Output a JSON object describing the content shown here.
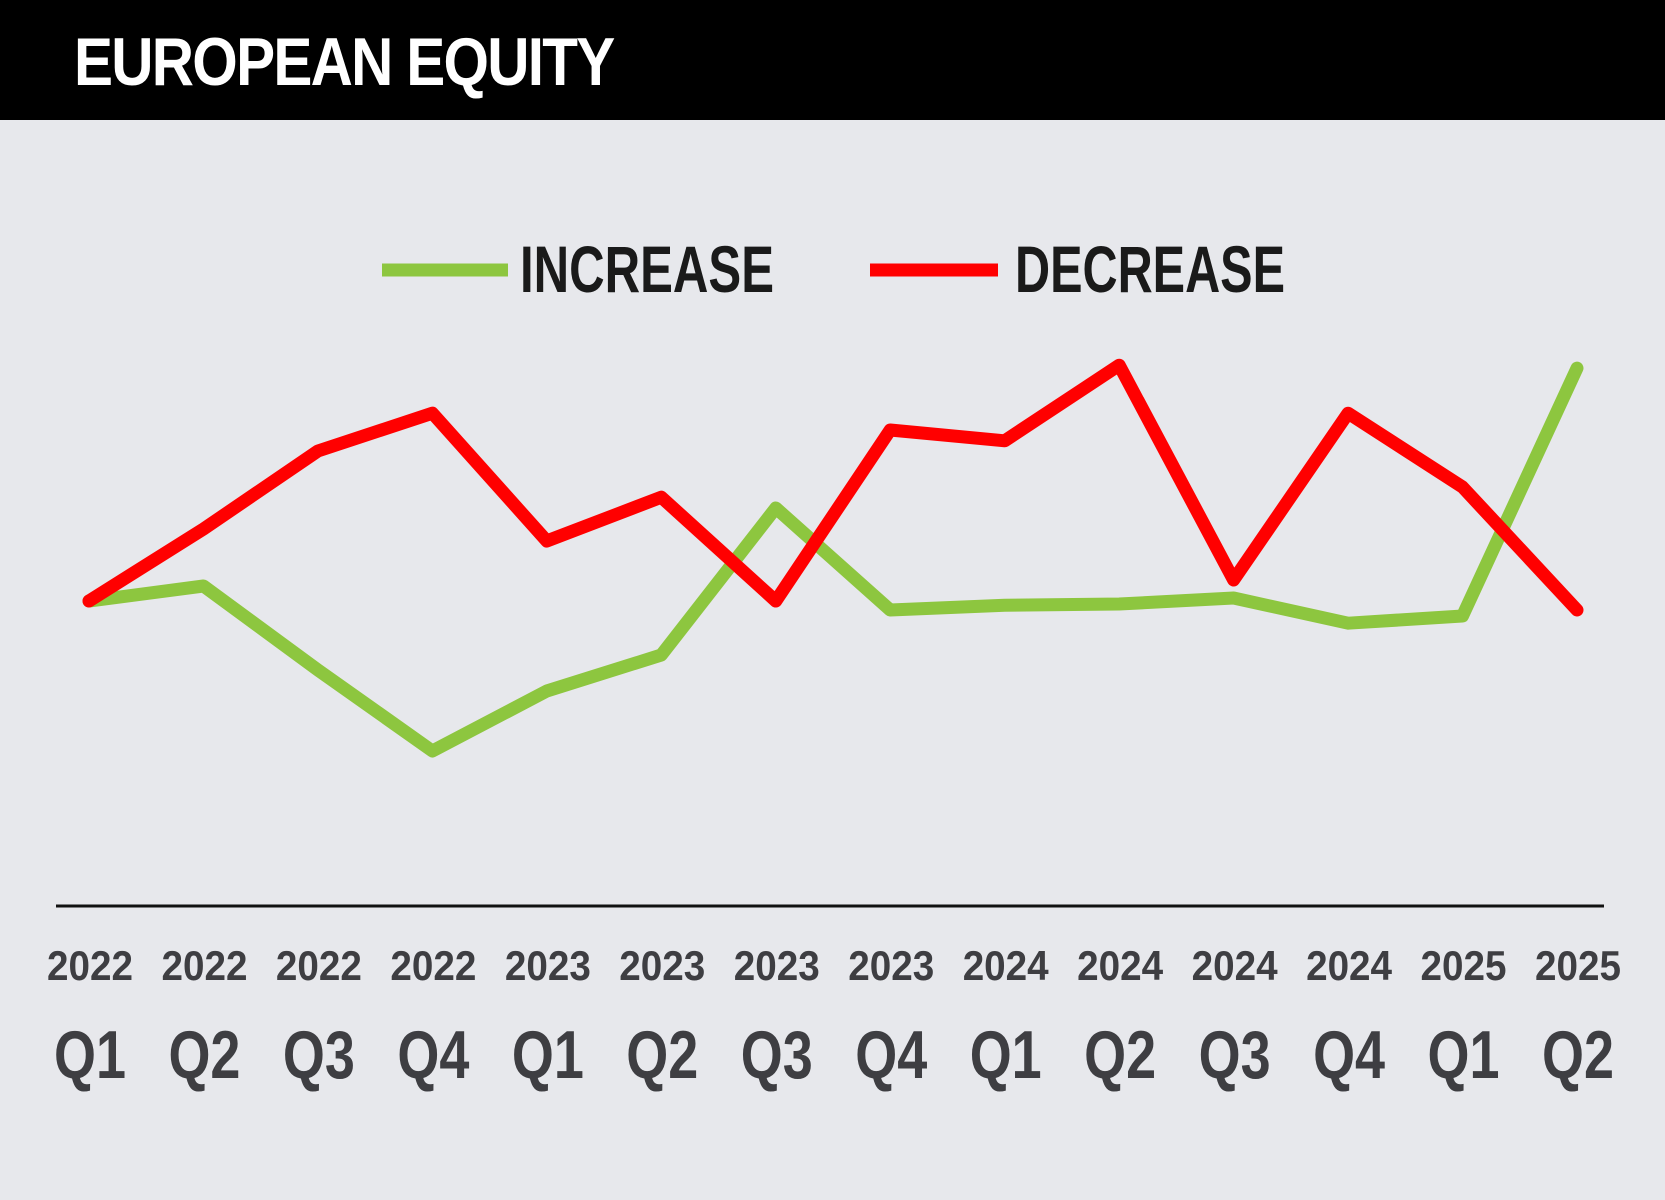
{
  "title": "EUROPEAN EQUITY",
  "chart_data": {
    "type": "line",
    "title": "EUROPEAN EQUITY",
    "xlabel": "",
    "ylabel": "",
    "y_axis_shown": false,
    "grid": false,
    "legend_position": "top-center",
    "categories": [
      {
        "year": "2022",
        "quarter": "Q1"
      },
      {
        "year": "2022",
        "quarter": "Q2"
      },
      {
        "year": "2022",
        "quarter": "Q3"
      },
      {
        "year": "2022",
        "quarter": "Q4"
      },
      {
        "year": "2023",
        "quarter": "Q1"
      },
      {
        "year": "2023",
        "quarter": "Q2"
      },
      {
        "year": "2023",
        "quarter": "Q3"
      },
      {
        "year": "2023",
        "quarter": "Q4"
      },
      {
        "year": "2024",
        "quarter": "Q1"
      },
      {
        "year": "2024",
        "quarter": "Q2"
      },
      {
        "year": "2024",
        "quarter": "Q3"
      },
      {
        "year": "2024",
        "quarter": "Q4"
      },
      {
        "year": "2025",
        "quarter": "Q1"
      },
      {
        "year": "2025",
        "quarter": "Q2"
      }
    ],
    "ylim": [
      0,
      100
    ],
    "series": [
      {
        "name": "INCREASE",
        "color": "#8dc63f",
        "values": [
          41.5,
          44.0,
          30.0,
          16.5,
          26.5,
          32.5,
          57.0,
          40.0,
          40.8,
          41.0,
          42.0,
          37.8,
          39.0,
          80.3
        ]
      },
      {
        "name": "DECREASE",
        "color": "#ff0000",
        "values": [
          41.5,
          53.5,
          66.5,
          72.8,
          51.5,
          58.8,
          41.5,
          70.0,
          68.2,
          80.8,
          45.0,
          72.8,
          60.5,
          40.0
        ]
      }
    ]
  }
}
